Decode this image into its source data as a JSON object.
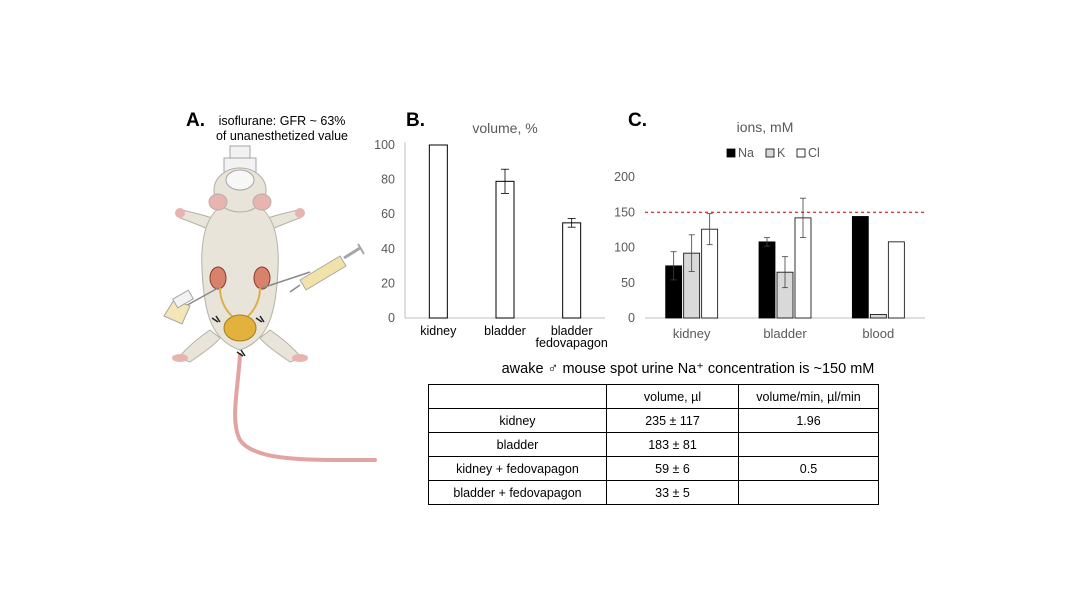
{
  "panels": {
    "a": {
      "letter": "A.",
      "note_line1": "isoflurane: GFR ~ 63%",
      "note_line2": "of unanesthetized value"
    },
    "b": {
      "letter": "B."
    },
    "c": {
      "letter": "C."
    }
  },
  "chart_data": [
    {
      "type": "bar",
      "title": "volume, %",
      "categories": [
        "kidney",
        "bladder",
        "bladder fedovapagon"
      ],
      "category_lines": [
        [
          "kidney"
        ],
        [
          "bladder"
        ],
        [
          "bladder",
          "fedovapagon"
        ]
      ],
      "values": [
        100,
        79,
        55
      ],
      "errors": [
        0,
        7,
        2.5
      ],
      "ylim": [
        0,
        100
      ],
      "yticks": [
        0,
        20,
        40,
        60,
        80,
        100
      ],
      "grid": false,
      "colors": {
        "bar_fill": "#ffffff",
        "bar_stroke": "#000000",
        "axis": "#bfbfbf",
        "tick_text": "#595959"
      }
    },
    {
      "type": "bar",
      "title": "ions, mM",
      "categories": [
        "kidney",
        "bladder",
        "blood"
      ],
      "series": [
        {
          "name": "Na",
          "values": [
            74,
            108,
            144
          ],
          "errors": [
            20,
            6,
            0
          ],
          "color": "#000000"
        },
        {
          "name": "K",
          "values": [
            92,
            65,
            5
          ],
          "errors": [
            26,
            22,
            0
          ],
          "color": "#d9d9d9"
        },
        {
          "name": "Cl",
          "values": [
            126,
            142,
            108
          ],
          "errors": [
            22,
            28,
            0
          ],
          "color": "#ffffff"
        }
      ],
      "reference_line": {
        "value": 150,
        "color": "#c00000",
        "style": "dashed"
      },
      "ylim": [
        0,
        200
      ],
      "yticks": [
        0,
        50,
        100,
        150,
        200
      ],
      "grid": false,
      "legend": "top"
    }
  ],
  "table": {
    "caption": "awake ♂ mouse spot urine Na⁺ concentration is ~150 mM",
    "headers": [
      "",
      "volume, µl",
      "volume/min, µl/min"
    ],
    "rows": [
      [
        "kidney",
        "235 ± 117",
        "1.96"
      ],
      [
        "bladder",
        "183 ± 81",
        ""
      ],
      [
        "kidney + fedovapagon",
        "59 ± 6",
        "0.5"
      ],
      [
        "bladder + fedovapagon",
        "33 ± 5",
        ""
      ]
    ]
  },
  "illustration": {
    "subject": "mouse-illustration",
    "body_color": "#e8e4da",
    "tail_color": "#e3a3a3",
    "kidney_color": "#d9826b",
    "bladder_color": "#e2b23c"
  }
}
